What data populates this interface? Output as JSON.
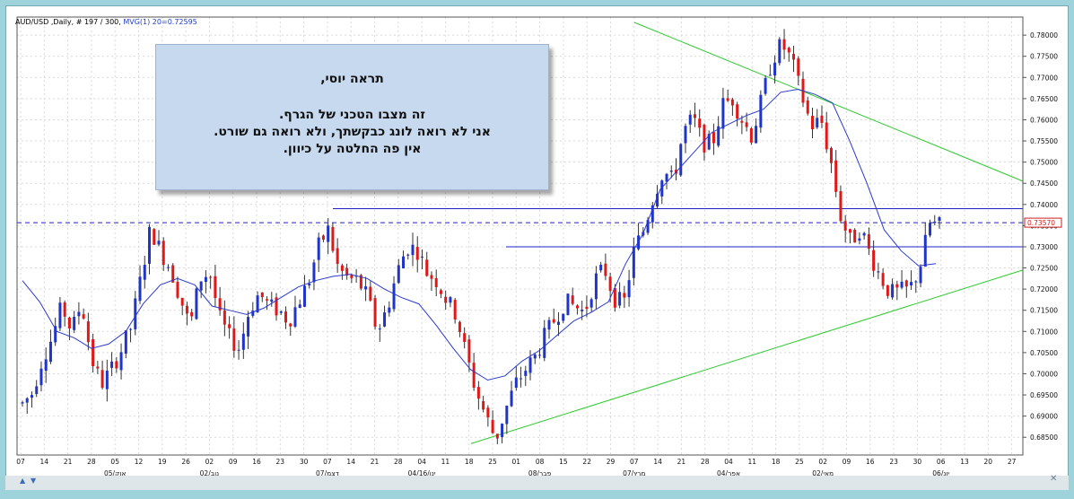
{
  "header": {
    "symbol_info": "AUD/USD ,Daily, # 197 / 300,",
    "indicator": "MVG(1) 20=0.72595"
  },
  "note": {
    "line1": "תראה יוסי,",
    "line2": "זה מצבו הטכני של הגרף.",
    "line3": "אני לא רואה לונג כבקשתך, ולא רואה גם שורט.",
    "line4": "אין פה החלטה על כיוון."
  },
  "colors": {
    "up_candle": "#1f35c8",
    "down_candle": "#e01818",
    "ma_line": "#2a3ad0",
    "trendline": "#2ecc2e",
    "hline": "#2020c0",
    "price_marker": "#cc2020"
  },
  "chart_data": {
    "type": "candlestick",
    "symbol": "AUD/USD",
    "timeframe": "Daily",
    "ylim": [
      0.6825,
      0.783
    ],
    "y_ticks": [
      "0.78000",
      "0.77500",
      "0.77000",
      "0.76500",
      "0.76000",
      "0.75500",
      "0.75000",
      "0.74500",
      "0.74000",
      "0.73500",
      "0.73000",
      "0.72500",
      "0.72000",
      "0.71500",
      "0.71000",
      "0.70500",
      "0.70000",
      "0.69500",
      "0.69000",
      "0.68500"
    ],
    "current_price": "0.73570",
    "x_day_labels": [
      "07",
      "14",
      "21",
      "28",
      "05",
      "12",
      "19",
      "26",
      "02",
      "09",
      "16",
      "23",
      "30",
      "07",
      "14",
      "21",
      "28",
      "04",
      "11",
      "18",
      "25",
      "01",
      "08",
      "15",
      "22",
      "29",
      "07",
      "14",
      "21",
      "28",
      "04",
      "11",
      "18",
      "25",
      "02",
      "09",
      "16",
      "23",
      "30",
      "06",
      "13",
      "20",
      "27"
    ],
    "x_month_labels": [
      {
        "label": "05/אוק",
        "index": 4
      },
      {
        "label": "02/נוב",
        "index": 8
      },
      {
        "label": "07/דצמ",
        "index": 13
      },
      {
        "label": "04/16/ינו",
        "index": 17
      },
      {
        "label": "08/פבר",
        "index": 22
      },
      {
        "label": "07/מרץ",
        "index": 26
      },
      {
        "label": "04/אפר",
        "index": 30
      },
      {
        "label": "02/מאי",
        "index": 34
      },
      {
        "label": "06/יונ",
        "index": 39
      }
    ],
    "close_path": [
      0.693,
      0.6955,
      0.7035,
      0.7085,
      0.716,
      0.71,
      0.717,
      0.7035,
      0.6975,
      0.701,
      0.7055,
      0.711,
      0.7225,
      0.7345,
      0.729,
      0.725,
      0.718,
      0.711,
      0.7225,
      0.724,
      0.713,
      0.7085,
      0.706,
      0.715,
      0.719,
      0.716,
      0.715,
      0.7125,
      0.717,
      0.7215,
      0.73,
      0.734,
      0.725,
      0.7225,
      0.722,
      0.718,
      0.71,
      0.7155,
      0.724,
      0.73,
      0.7295,
      0.724,
      0.722,
      0.7175,
      0.714,
      0.7045,
      0.696,
      0.69,
      0.6845,
      0.6915,
      0.6975,
      0.701,
      0.704,
      0.709,
      0.713,
      0.717,
      0.716,
      0.7145,
      0.722,
      0.725,
      0.718,
      0.7165,
      0.729,
      0.734,
      0.742,
      0.748,
      0.7455,
      0.757,
      0.7605,
      0.7545,
      0.7545,
      0.7635,
      0.765,
      0.76,
      0.756,
      0.765,
      0.774,
      0.778,
      0.774,
      0.766,
      0.7585,
      0.76,
      0.75,
      0.737,
      0.731,
      0.7345,
      0.728,
      0.723,
      0.719,
      0.7195,
      0.72,
      0.725,
      0.7355,
      0.735
    ],
    "ma20_path": [
      0.722,
      0.717,
      0.71,
      0.7085,
      0.706,
      0.707,
      0.71,
      0.7165,
      0.721,
      0.7225,
      0.721,
      0.716,
      0.715,
      0.714,
      0.7155,
      0.718,
      0.7205,
      0.722,
      0.723,
      0.7235,
      0.7225,
      0.72,
      0.718,
      0.7165,
      0.7115,
      0.706,
      0.701,
      0.6985,
      0.6995,
      0.703,
      0.7055,
      0.709,
      0.7125,
      0.7145,
      0.717,
      0.726,
      0.733,
      0.7435,
      0.748,
      0.7525,
      0.757,
      0.759,
      0.761,
      0.7625,
      0.7665,
      0.7672,
      0.766,
      0.764,
      0.755,
      0.745,
      0.734,
      0.729,
      0.7255,
      0.726
    ],
    "trendlines": [
      {
        "from_index": 0.8,
        "from_price": 0.783,
        "to_index": 1.0,
        "to_price": 0.7455,
        "note": "descending resistance"
      },
      {
        "from_index": 0.0,
        "from_price": 0.6835,
        "to_index": 1.0,
        "to_price": 0.7245,
        "note": "ascending support"
      }
    ],
    "horizontal_levels": [
      0.739,
      0.7357,
      0.73
    ]
  }
}
